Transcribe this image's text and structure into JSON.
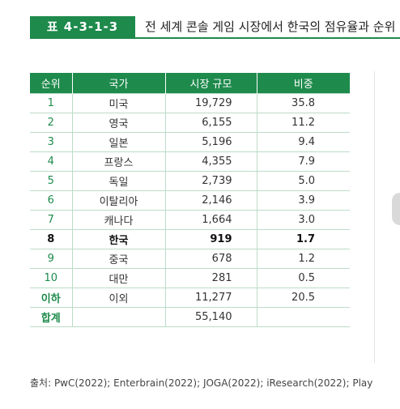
{
  "header": {
    "table_number": "표 4-3-1-3",
    "title": "전 세계 콘솔 게임 시장에서 한국의 점유율과 순위"
  },
  "table": {
    "columns": [
      "순위",
      "국가",
      "시장 규모",
      "비중"
    ],
    "rows": [
      {
        "rank": "1",
        "country": "미국",
        "size": "19,729",
        "share": "35.8"
      },
      {
        "rank": "2",
        "country": "영국",
        "size": "6,155",
        "share": "11.2"
      },
      {
        "rank": "3",
        "country": "일본",
        "size": "5,196",
        "share": "9.4"
      },
      {
        "rank": "4",
        "country": "프랑스",
        "size": "4,355",
        "share": "7.9"
      },
      {
        "rank": "5",
        "country": "독일",
        "size": "2,739",
        "share": "5.0"
      },
      {
        "rank": "6",
        "country": "이탈리아",
        "size": "2,146",
        "share": "3.9"
      },
      {
        "rank": "7",
        "country": "캐나다",
        "size": "1,664",
        "share": "3.0"
      },
      {
        "rank": "8",
        "country": "한국",
        "size": "919",
        "share": "1.7"
      },
      {
        "rank": "9",
        "country": "중국",
        "size": "678",
        "share": "1.2"
      },
      {
        "rank": "10",
        "country": "대만",
        "size": "281",
        "share": "0.5"
      },
      {
        "rank": "이하",
        "country": "이외",
        "size": "11,277",
        "share": "20.5"
      },
      {
        "rank": "합계",
        "country": "",
        "size": "55,140",
        "share": ""
      }
    ]
  },
  "source": "출처: PwC(2022); Enterbrain(2022); JOGA(2022); iResearch(2022); Play",
  "colors": {
    "accent": "#1e8a4c",
    "grid": "#bcdcc8"
  }
}
